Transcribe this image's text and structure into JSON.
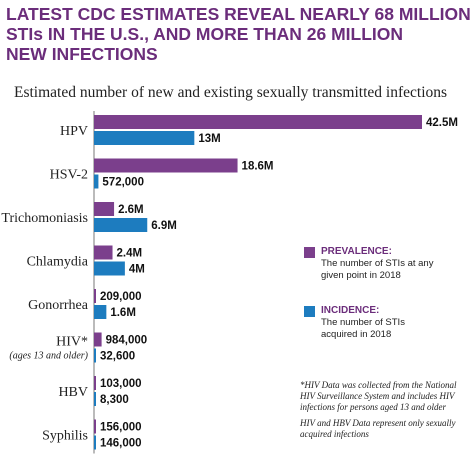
{
  "header": {
    "title_lines": [
      "LATEST CDC ESTIMATES REVEAL NEARLY 68 MILLION",
      "STIs IN THE U.S., AND MORE THAN 26 MILLION",
      "NEW INFECTIONS"
    ]
  },
  "colors": {
    "prevalence": "#7b3f8c",
    "incidence": "#1d7cbf",
    "title": "#6b2d7b",
    "axis": "#555555"
  },
  "legend": {
    "prevalence": {
      "name": "PREVALENCE:",
      "desc": "The number of STIs at any given point in 2018"
    },
    "incidence": {
      "name": "INCIDENCE:",
      "desc": "The number of STIs acquired in 2018"
    }
  },
  "notes": [
    "*HIV Data was collected from the National HIV Surveillance System and includes HIV infections for persons aged 13 and older",
    "HIV and HBV Data represent only sexually acquired infections"
  ],
  "chart_data": {
    "type": "bar",
    "orientation": "horizontal",
    "title": "Estimated number of new and existing sexually transmitted infections",
    "categories": [
      "HPV",
      "HSV-2",
      "Trichomoniasis",
      "Chlamydia",
      "Gonorrhea",
      "HIV*",
      "HBV",
      "Syphilis"
    ],
    "category_notes": [
      "",
      "",
      "",
      "",
      "",
      "(ages 13 and older)",
      "",
      ""
    ],
    "series": [
      {
        "name": "PREVALENCE",
        "values": [
          42500000,
          18600000,
          2600000,
          2400000,
          209000,
          984000,
          103000,
          156000
        ],
        "labels": [
          "42.5M",
          "18.6M",
          "2.6M",
          "2.4M",
          "209,000",
          "984,000",
          "103,000",
          "156,000"
        ]
      },
      {
        "name": "INCIDENCE",
        "values": [
          13000000,
          572000,
          6900000,
          4000000,
          1600000,
          32600,
          8300,
          146000
        ],
        "labels": [
          "13M",
          "572,000",
          "6.9M",
          "4M",
          "1.6M",
          "32,600",
          "8,300",
          "146,000"
        ]
      }
    ],
    "xlim": [
      0,
      42500000
    ],
    "grid": false,
    "legend_position": "right"
  }
}
